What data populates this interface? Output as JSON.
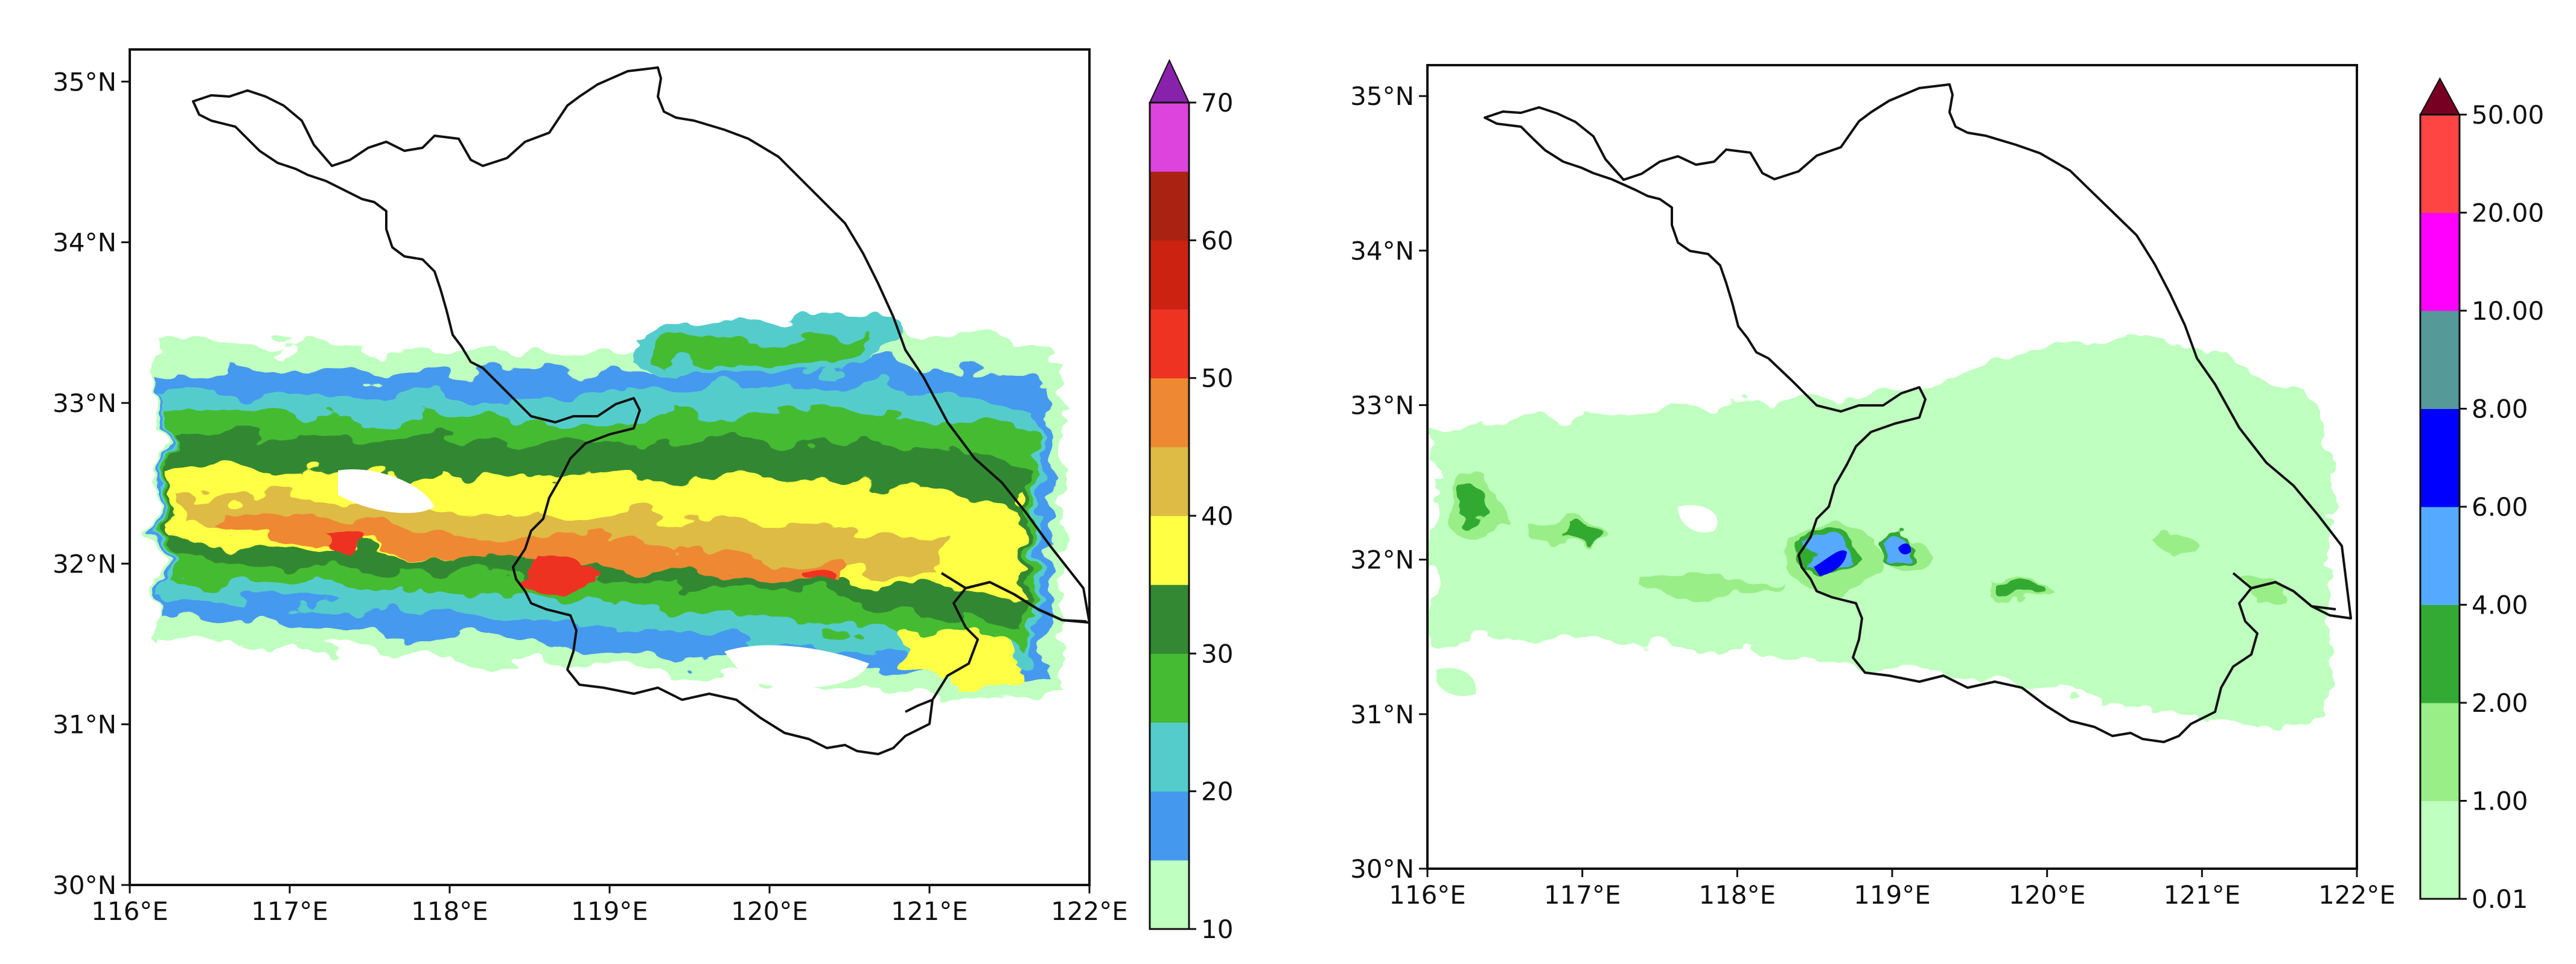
{
  "panels": [
    {
      "id": "left",
      "x_ticks": [
        "116°E",
        "117°E",
        "118°E",
        "119°E",
        "120°E",
        "121°E",
        "122°E"
      ],
      "y_ticks": [
        "30°N",
        "31°N",
        "32°N",
        "33°N",
        "34°N",
        "35°N"
      ],
      "extent": {
        "lon": [
          116,
          122
        ],
        "lat": [
          30,
          35.2
        ]
      },
      "colorbar": {
        "extend": "max",
        "tick_labels": [
          "10",
          "20",
          "30",
          "40",
          "50",
          "60",
          "70"
        ],
        "colors": [
          "#bfffbf",
          "#4499ee",
          "#55cccc",
          "#44bb33",
          "#338833",
          "#ffff44",
          "#ddbb44",
          "#ee8833",
          "#ee3322",
          "#cc2211",
          "#aa2211",
          "#dd44dd",
          "#8822aa"
        ]
      }
    },
    {
      "id": "right",
      "x_ticks": [
        "116°E",
        "117°E",
        "118°E",
        "119°E",
        "120°E",
        "121°E",
        "122°E"
      ],
      "y_ticks": [
        "30°N",
        "31°N",
        "32°N",
        "33°N",
        "34°N",
        "35°N"
      ],
      "extent": {
        "lon": [
          116,
          122
        ],
        "lat": [
          30,
          35.2
        ]
      },
      "colorbar": {
        "extend": "max",
        "tick_labels": [
          "0.01",
          "1.00",
          "2.00",
          "4.00",
          "6.00",
          "8.00",
          "10.00",
          "20.00",
          "50.00"
        ],
        "colors": [
          "#bfffbf",
          "#99ee88",
          "#33aa33",
          "#55aaff",
          "#0000ff",
          "#559999",
          "#ff00ff",
          "#ff4444",
          "#770022"
        ]
      }
    }
  ]
}
